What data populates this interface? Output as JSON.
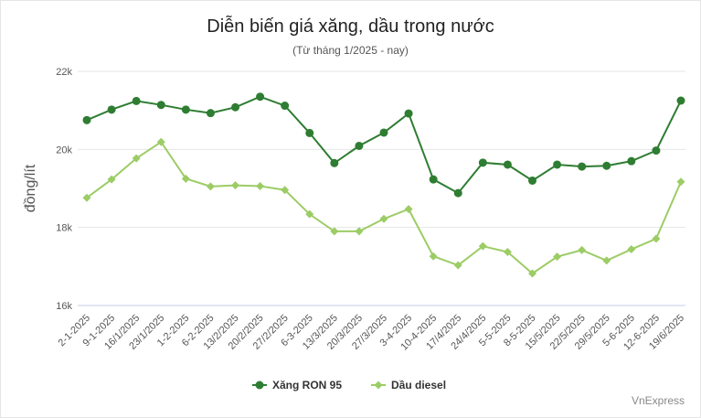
{
  "title": "Diễn biến giá xăng, dầu trong nước",
  "subtitle": "(Từ tháng 1/2025 - nay)",
  "credit": "VnExpress",
  "colors": {
    "ron95": "#2e7d32",
    "diesel": "#9ccc65",
    "grid": "#e6e6e6",
    "axis": "#c8cbe8"
  },
  "chart_data": {
    "type": "line",
    "title": "Diễn biến giá xăng, dầu trong nước",
    "subtitle": "(Từ tháng 1/2025 - nay)",
    "ylabel": "đồng/lít",
    "xlabel": "",
    "ylim": [
      16000,
      22000
    ],
    "yticks": [
      16000,
      18000,
      20000,
      22000
    ],
    "ytick_labels": [
      "16k",
      "18k",
      "20k",
      "22k"
    ],
    "grid": true,
    "legend": "bottom",
    "categories": [
      "2-1-2025",
      "9-1-2025",
      "16/1/2025",
      "23/1/2025",
      "1-2-2025",
      "6-2-2025",
      "13/2/2025",
      "20/2/2025",
      "27/2/2025",
      "6-3-2025",
      "13/3/2025",
      "20/3/2025",
      "27/3/2025",
      "3-4-2025",
      "10-4-2025",
      "17/4/2025",
      "24/4/2025",
      "5-5-2025",
      "8-5-2025",
      "15/5/2025",
      "22/5/2025",
      "29/5/2025",
      "5-6-2025",
      "12-6-2025",
      "19/6/2025"
    ],
    "series": [
      {
        "name": "Xăng RON 95",
        "marker": "circle",
        "values": [
          20750,
          21020,
          21240,
          21140,
          21020,
          20930,
          21080,
          21350,
          21120,
          20420,
          19650,
          20090,
          20430,
          20920,
          19230,
          18880,
          19660,
          19610,
          19200,
          19610,
          19560,
          19580,
          19700,
          19970,
          21250
        ]
      },
      {
        "name": "Dầu diesel",
        "marker": "diamond",
        "values": [
          18760,
          19230,
          19770,
          20190,
          19250,
          19050,
          19080,
          19060,
          18960,
          18340,
          17900,
          17900,
          18220,
          18470,
          17260,
          17030,
          17520,
          17370,
          16820,
          17250,
          17420,
          17150,
          17440,
          17710,
          19170
        ]
      }
    ]
  }
}
